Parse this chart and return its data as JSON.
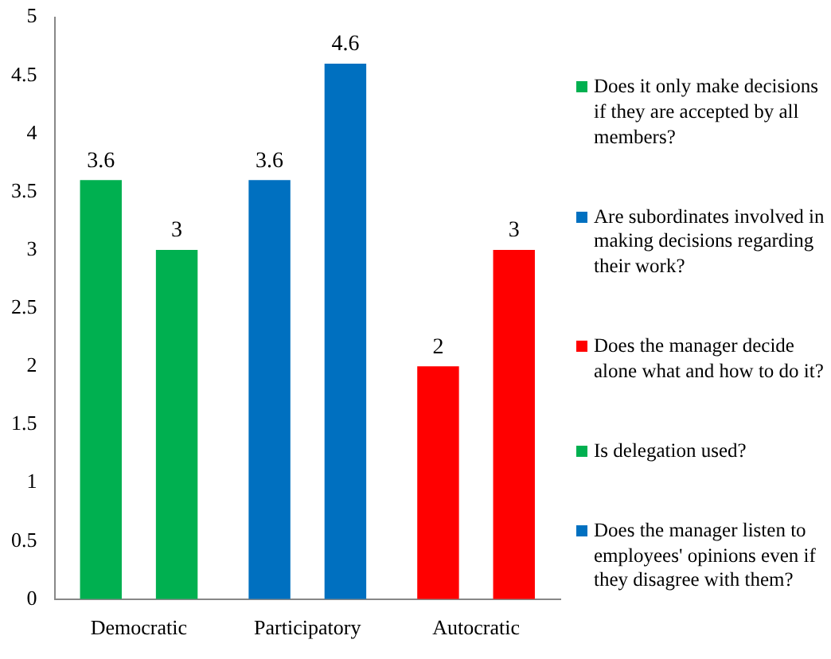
{
  "chart_data": {
    "type": "bar",
    "categories": [
      "Democratic",
      "Participatory",
      "Autocratic"
    ],
    "series": [
      {
        "name": "Does it only make decisions if they are accepted by all members?",
        "color": "#00b050",
        "values": [
          3.6,
          null,
          null
        ]
      },
      {
        "name": "Are subordinates involved in making decisions regarding their work?",
        "color": "#0070c0",
        "values": [
          null,
          3.6,
          null
        ]
      },
      {
        "name": "Does the manager decide alone what and how to do it?",
        "color": "#ff0000",
        "values": [
          null,
          null,
          2
        ]
      },
      {
        "name": "Is delegation used?",
        "color": "#00b050",
        "values": [
          3,
          null,
          null
        ]
      },
      {
        "name": "Does the manager listen to employees' opinions even if they disagree with them?",
        "color": "#0070c0",
        "values": [
          null,
          4.6,
          null
        ]
      },
      {
        "color": "#ff0000",
        "values": [
          null,
          null,
          3
        ]
      }
    ],
    "ylim": [
      0,
      5
    ],
    "yticks": [
      0,
      0.5,
      1,
      1.5,
      2,
      2.5,
      3,
      3.5,
      4,
      4.5,
      5
    ],
    "grid": false,
    "legend": "right",
    "data_labels": true
  }
}
